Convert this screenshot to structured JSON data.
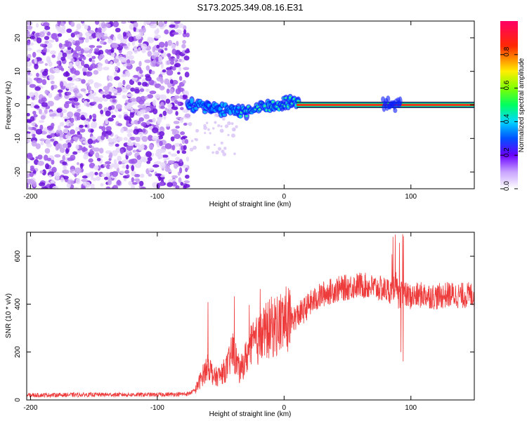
{
  "title": "S173.2025.349.08.16.E31",
  "colors": {
    "snr_line": "#ee3b3b",
    "ridge": "#e83a1f",
    "noise": "#8a2be2",
    "axis": "#000000"
  },
  "chart_data": [
    {
      "type": "heatmap",
      "name": "spectrogram",
      "xlabel": "Height of straight line (km)",
      "ylabel": "Frequency (Hz)",
      "xlim": [
        -203,
        150
      ],
      "ylim": [
        -25,
        25
      ],
      "xticks": [
        -200,
        -100,
        0,
        100
      ],
      "yticks": [
        20,
        10,
        0,
        -10,
        -20
      ],
      "noise_region_x": [
        -203,
        -76
      ],
      "ridge": {
        "x_start": 10,
        "x_end": 150,
        "freq": 0,
        "amplitude": 0.9,
        "description_points": [
          {
            "x": -75,
            "y": 0
          },
          {
            "x": -55,
            "y": -1
          },
          {
            "x": -40,
            "y": -2
          },
          {
            "x": -30,
            "y": -2
          },
          {
            "x": -20,
            "y": -1
          },
          {
            "x": -5,
            "y": 0
          },
          {
            "x": 5,
            "y": 1
          },
          {
            "x": 10,
            "y": 0
          },
          {
            "x": 80,
            "y": 0
          },
          {
            "x": 88,
            "y": 0
          }
        ]
      },
      "colorbar": {
        "label": "Normalized spectral amplitude",
        "range": [
          0,
          1
        ],
        "ticks": [
          0.0,
          0.2,
          0.4,
          0.6,
          0.8
        ]
      }
    },
    {
      "type": "line",
      "name": "snr",
      "xlabel": "Height of straight line (km)",
      "ylabel": "SNR (10 * v/v)",
      "xlim": [
        -203,
        150
      ],
      "ylim": [
        0,
        700
      ],
      "xticks": [
        -200,
        -100,
        0,
        100
      ],
      "yticks": [
        0,
        200,
        400,
        600
      ],
      "series": [
        {
          "name": "SNR",
          "x": [
            -203,
            -150,
            -100,
            -76,
            -70,
            -63,
            -60,
            -55,
            -50,
            -45,
            -40,
            -35,
            -30,
            -25,
            -20,
            -15,
            -10,
            -5,
            0,
            5,
            10,
            15,
            20,
            25,
            30,
            40,
            50,
            60,
            70,
            80,
            85,
            88,
            90,
            92,
            95,
            100,
            110,
            120,
            130,
            140,
            150
          ],
          "values": [
            20,
            22,
            22,
            25,
            40,
            110,
            140,
            90,
            100,
            130,
            200,
            110,
            170,
            220,
            240,
            270,
            290,
            300,
            315,
            330,
            350,
            370,
            400,
            420,
            440,
            460,
            470,
            480,
            470,
            460,
            455,
            490,
            430,
            440,
            440,
            430,
            440,
            430,
            440,
            435,
            440
          ]
        }
      ]
    }
  ]
}
